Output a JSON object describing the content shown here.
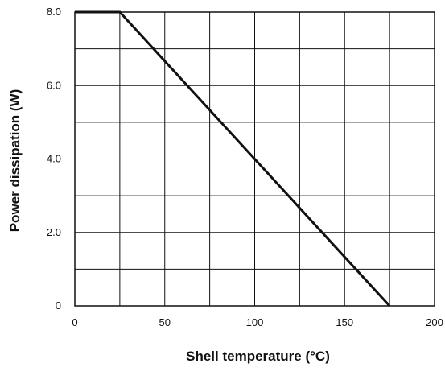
{
  "chart_data": {
    "type": "line",
    "title": "",
    "xlabel": "Shell temperature (°C)",
    "ylabel": "Power dissipation (W)",
    "xlim": [
      0,
      200
    ],
    "ylim": [
      0,
      8
    ],
    "x_ticks": [
      0,
      50,
      100,
      150,
      200
    ],
    "x_tick_labels": [
      "0",
      "50",
      "100",
      "150",
      "200"
    ],
    "y_ticks": [
      0,
      2,
      4,
      6,
      8
    ],
    "y_tick_labels": [
      "0",
      "2.0",
      "4.0",
      "6.0",
      "8.0"
    ],
    "x_grid": [
      0,
      25,
      50,
      75,
      100,
      125,
      150,
      175,
      200
    ],
    "y_grid": [
      0,
      1,
      2,
      3,
      4,
      5,
      6,
      7,
      8
    ],
    "grid": true,
    "series": [
      {
        "x": [
          0,
          25,
          175
        ],
        "y": [
          8,
          8,
          0
        ]
      }
    ],
    "colors": {
      "line": "#111111",
      "grid": "#111111",
      "frame": "#111111"
    }
  }
}
